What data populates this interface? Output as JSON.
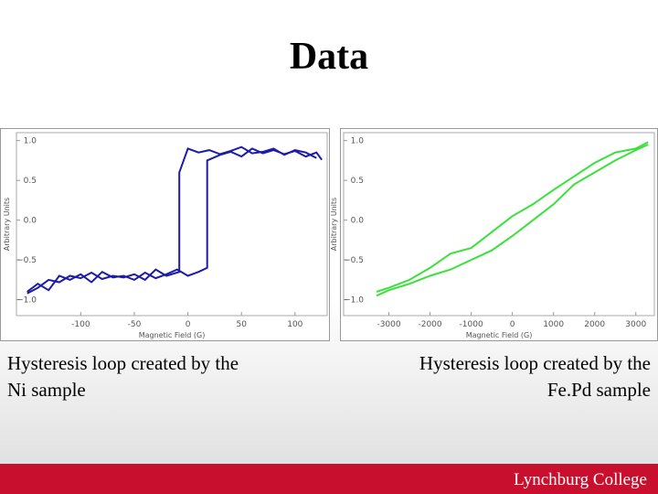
{
  "slide": {
    "title": "Data",
    "captions": [
      [
        "Hysteresis loop created by the",
        "Ni sample"
      ],
      [
        "Hysteresis loop created by the",
        "Fe.Pd sample"
      ]
    ],
    "logo": "Lynchburg College"
  },
  "chart_data": [
    {
      "type": "line",
      "xlabel": "Magnetic Field (G)",
      "ylabel": "Arbitrary Units",
      "xlim": [
        -160,
        130
      ],
      "ylim": [
        -1.2,
        1.1
      ],
      "xticks": [
        -100,
        -50,
        0,
        50,
        100
      ],
      "yticks": [
        {
          "value": 1,
          "label": "1.0"
        },
        {
          "value": 0.5,
          "label": "0.5"
        },
        {
          "value": 0,
          "label": "0.0"
        },
        {
          "value": -0.5,
          "label": "−0.5"
        },
        {
          "value": -1,
          "label": "−1.0"
        }
      ],
      "series": [
        {
          "color": "#1c1ca8",
          "x": [
            120,
            110,
            100,
            90,
            80,
            70,
            60,
            50,
            40,
            30,
            20,
            10,
            0,
            -8,
            -8,
            -20,
            -30,
            -40,
            -50,
            -60,
            -70,
            -80,
            -90,
            -100,
            -110,
            -120,
            -130,
            -140,
            -150
          ],
          "values": [
            0.78,
            0.85,
            0.88,
            0.82,
            0.9,
            0.86,
            0.84,
            0.92,
            0.87,
            0.83,
            0.88,
            0.85,
            0.9,
            0.6,
            -0.65,
            -0.7,
            -0.62,
            -0.75,
            -0.68,
            -0.72,
            -0.7,
            -0.74,
            -0.66,
            -0.73,
            -0.7,
            -0.78,
            -0.75,
            -0.85,
            -0.92
          ]
        },
        {
          "color": "#1c1ca8",
          "x": [
            -150,
            -140,
            -130,
            -120,
            -110,
            -100,
            -90,
            -80,
            -70,
            -60,
            -50,
            -40,
            -30,
            -20,
            -10,
            0,
            10,
            18,
            18,
            30,
            40,
            50,
            60,
            70,
            80,
            90,
            100,
            110,
            120,
            125
          ],
          "values": [
            -0.9,
            -0.8,
            -0.88,
            -0.7,
            -0.75,
            -0.68,
            -0.78,
            -0.65,
            -0.72,
            -0.7,
            -0.75,
            -0.66,
            -0.73,
            -0.68,
            -0.62,
            -0.7,
            -0.65,
            -0.6,
            0.75,
            0.82,
            0.86,
            0.8,
            0.9,
            0.84,
            0.88,
            0.83,
            0.87,
            0.8,
            0.85,
            0.76
          ]
        }
      ]
    },
    {
      "type": "line",
      "xlabel": "Magnetic Field (G)",
      "ylabel": "Arbitrary Units",
      "xlim": [
        -4100,
        3450
      ],
      "ylim": [
        -1.2,
        1.1
      ],
      "xticks": [
        -3000,
        -2000,
        -1000,
        0,
        1000,
        2000,
        3000
      ],
      "yticks": [
        {
          "value": 1,
          "label": "1.0"
        },
        {
          "value": 0.5,
          "label": "0.5"
        },
        {
          "value": 0,
          "label": "0.0"
        },
        {
          "value": -0.5,
          "label": "−0.5"
        },
        {
          "value": -1,
          "label": "−1.0"
        }
      ],
      "series": [
        {
          "color": "#3be03b",
          "x": [
            3300,
            3000,
            2500,
            2000,
            1500,
            1000,
            500,
            0,
            -500,
            -1000,
            -1500,
            -2000,
            -2500,
            -3000,
            -3300
          ],
          "values": [
            0.98,
            0.9,
            0.85,
            0.72,
            0.55,
            0.38,
            0.2,
            0.05,
            -0.15,
            -0.35,
            -0.42,
            -0.6,
            -0.75,
            -0.85,
            -0.9
          ]
        },
        {
          "color": "#3be03b",
          "x": [
            -3300,
            -3000,
            -2500,
            -2000,
            -1500,
            -1000,
            -500,
            0,
            500,
            1000,
            1500,
            2000,
            2500,
            3000,
            3300
          ],
          "values": [
            -0.95,
            -0.88,
            -0.8,
            -0.7,
            -0.62,
            -0.5,
            -0.38,
            -0.2,
            0,
            0.2,
            0.45,
            0.6,
            0.75,
            0.88,
            0.95
          ]
        }
      ]
    }
  ]
}
